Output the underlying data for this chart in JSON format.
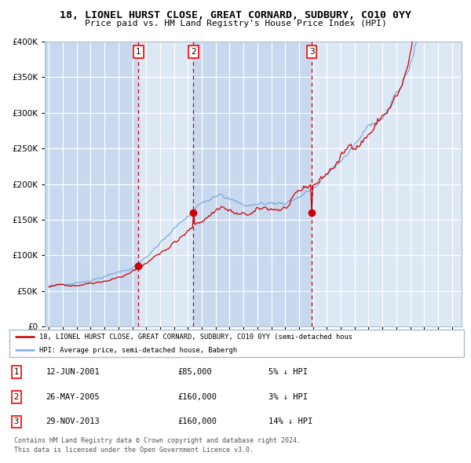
{
  "title": "18, LIONEL HURST CLOSE, GREAT CORNARD, SUDBURY, CO10 0YY",
  "subtitle": "Price paid vs. HM Land Registry's House Price Index (HPI)",
  "legend_label_red": "18, LIONEL HURST CLOSE, GREAT CORNARD, SUDBURY, CO10 0YY (semi-detached hous",
  "legend_label_blue": "HPI: Average price, semi-detached house, Babergh",
  "footer_line1": "Contains HM Land Registry data © Crown copyright and database right 2024.",
  "footer_line2": "This data is licensed under the Open Government Licence v3.0.",
  "sales": [
    {
      "num": 1,
      "date": "12-JUN-2001",
      "price": 85000,
      "pct": "5%",
      "dir": "↓"
    },
    {
      "num": 2,
      "date": "26-MAY-2005",
      "price": 160000,
      "pct": "3%",
      "dir": "↓"
    },
    {
      "num": 3,
      "date": "29-NOV-2013",
      "price": 160000,
      "pct": "14%",
      "dir": "↓"
    }
  ],
  "sale_dates_decimal": [
    2001.44,
    2005.4,
    2013.91
  ],
  "sale_prices": [
    85000,
    160000,
    160000
  ],
  "background_color": "#ffffff",
  "plot_bg_color": "#dde8f5",
  "grid_color": "#ffffff",
  "red_line_color": "#cc0000",
  "blue_line_color": "#7aaadd",
  "dashed_color": "#cc0000",
  "shade_color": "#c8d8ee",
  "ylim": [
    0,
    400000
  ],
  "yticks": [
    0,
    50000,
    100000,
    150000,
    200000,
    250000,
    300000,
    350000,
    400000
  ],
  "xlim_start": 1994.7,
  "xlim_end": 2024.7,
  "xticks": [
    1995,
    1996,
    1997,
    1998,
    1999,
    2000,
    2001,
    2002,
    2003,
    2004,
    2005,
    2006,
    2007,
    2008,
    2009,
    2010,
    2011,
    2012,
    2013,
    2014,
    2015,
    2016,
    2017,
    2018,
    2019,
    2020,
    2021,
    2022,
    2023,
    2024
  ]
}
